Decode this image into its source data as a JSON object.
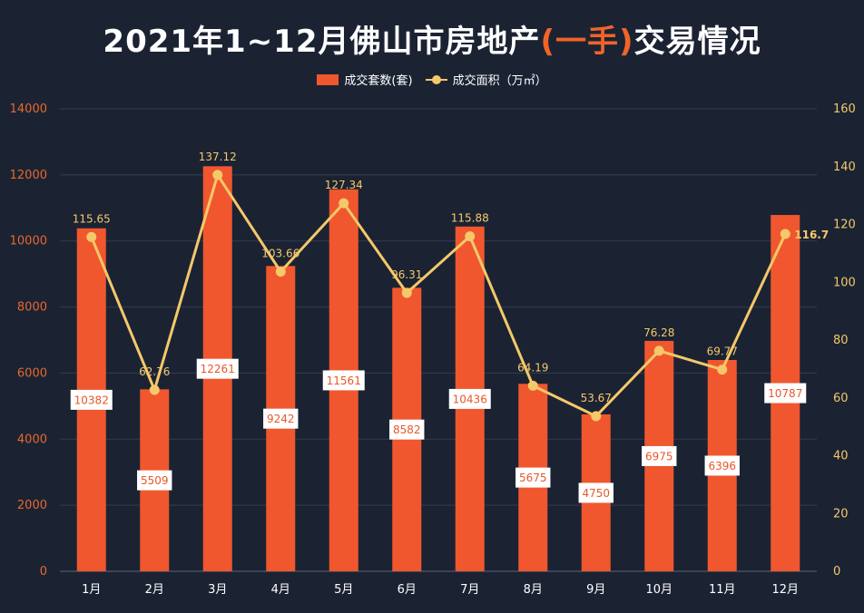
{
  "title": {
    "prefix": "2021年1~12月佛山市房地产",
    "highlight": "(一手)",
    "suffix": "交易情况"
  },
  "legend": {
    "bar_label": "成交套数(套)",
    "line_label": "成交面积（万㎡）"
  },
  "colors": {
    "background": "#1b2333",
    "bar": "#f0572e",
    "line": "#f5c86a",
    "left_axis_text": "#e8672e",
    "right_axis_text": "#f5c86a",
    "highlight": "#f0642a"
  },
  "chart_data": {
    "type": "bar",
    "categories": [
      "1月",
      "2月",
      "3月",
      "4月",
      "5月",
      "6月",
      "7月",
      "8月",
      "9月",
      "10月",
      "11月",
      "12月"
    ],
    "series": [
      {
        "name": "成交套数(套)",
        "type": "bar",
        "axis": "left",
        "values": [
          10382,
          5509,
          12261,
          9242,
          11561,
          8582,
          10436,
          5675,
          4750,
          6975,
          6396,
          10787
        ],
        "labels": [
          "10382",
          "5509",
          "12261",
          "9242",
          "11561",
          "8582",
          "10436",
          "5675",
          "4750",
          "6975",
          "6396",
          "10787"
        ]
      },
      {
        "name": "成交面积（万㎡）",
        "type": "line",
        "axis": "right",
        "values": [
          115.65,
          62.76,
          137.12,
          103.66,
          127.34,
          96.31,
          115.88,
          64.19,
          53.67,
          76.28,
          69.77,
          116.7
        ],
        "labels": [
          "115.65",
          "62.76",
          "137.12",
          "103.66",
          "127.34",
          "96.31",
          "115.88",
          "64.19",
          "53.67",
          "76.28",
          "69.77",
          "116.7"
        ]
      }
    ],
    "y_left": {
      "min": 0,
      "max": 14000,
      "ticks": [
        "0",
        "2000",
        "4000",
        "6000",
        "8000",
        "10000",
        "12000",
        "14000"
      ]
    },
    "y_right": {
      "min": 0,
      "max": 160,
      "ticks": [
        "0",
        "20",
        "40",
        "60",
        "80",
        "100",
        "120",
        "140",
        "160"
      ]
    },
    "grid": true,
    "legend_position": "top-center"
  }
}
